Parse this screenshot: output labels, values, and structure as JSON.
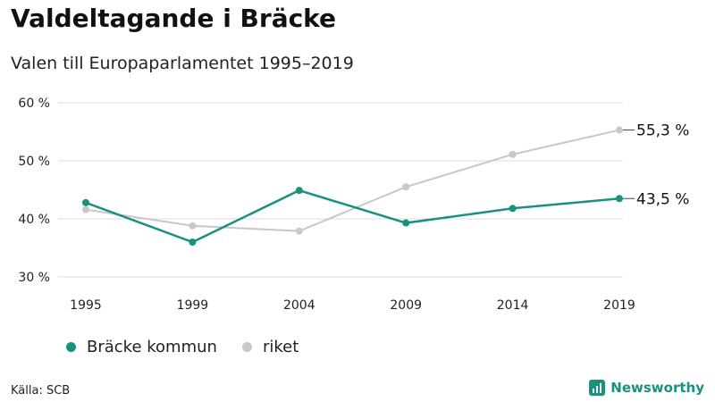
{
  "title": "Valdeltagande i Bräcke",
  "subtitle": "Valen till Europaparlamentet 1995–2019",
  "source": "Källa: SCB",
  "brand": {
    "name": "Newsworthy",
    "icon": "bar-chart-logo-icon"
  },
  "colors": {
    "primary": "#1a9080",
    "secondary": "#c8c8c8",
    "grid": "#dddddd",
    "brand": "#1a9080"
  },
  "chart_data": {
    "type": "line",
    "categories": [
      "1995",
      "1999",
      "2004",
      "2009",
      "2014",
      "2019"
    ],
    "ylim": [
      30,
      60
    ],
    "yticks": [
      30,
      40,
      50,
      60
    ],
    "ytick_labels": [
      "30 %",
      "40 %",
      "50 %",
      "60 %"
    ],
    "grid": true,
    "series": [
      {
        "name": "riket",
        "values": [
          41.6,
          38.8,
          37.9,
          45.5,
          51.1,
          55.3
        ],
        "end_label": "55,3 %"
      },
      {
        "name": "Bräcke kommun",
        "values": [
          42.8,
          36.0,
          44.9,
          39.3,
          41.8,
          43.5
        ],
        "end_label": "43,5 %"
      }
    ],
    "legend": [
      "Bräcke kommun",
      "riket"
    ],
    "legend_position": "bottom-left"
  }
}
